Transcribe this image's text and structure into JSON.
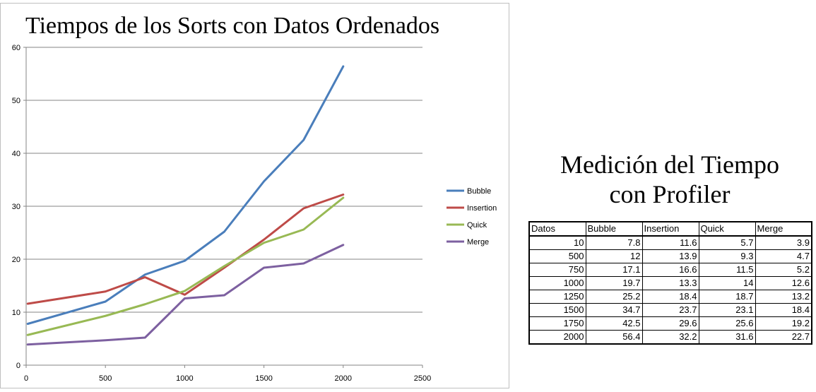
{
  "chart_data": {
    "type": "line",
    "title": "Tiempos de los Sorts con Datos Ordenados",
    "xlabel": "",
    "ylabel": "",
    "x": [
      10,
      500,
      750,
      1000,
      1250,
      1500,
      1750,
      2000
    ],
    "xlim": [
      0,
      2500
    ],
    "ylim": [
      0,
      60
    ],
    "xticks": [
      0,
      500,
      1000,
      1500,
      2000,
      2500
    ],
    "yticks": [
      0,
      10,
      20,
      30,
      40,
      50,
      60
    ],
    "grid": "horizontal",
    "legend": "right",
    "series": [
      {
        "name": "Bubble",
        "color": "#4a7ebb",
        "values": [
          7.8,
          12,
          17.1,
          19.7,
          25.2,
          34.7,
          42.5,
          56.4
        ]
      },
      {
        "name": "Insertion",
        "color": "#be4b48",
        "values": [
          11.6,
          13.9,
          16.6,
          13.3,
          18.4,
          23.7,
          29.6,
          32.2
        ]
      },
      {
        "name": "Quick",
        "color": "#98b954",
        "values": [
          5.7,
          9.3,
          11.5,
          14,
          18.7,
          23.1,
          25.6,
          31.6
        ]
      },
      {
        "name": "Merge",
        "color": "#7d60a0",
        "values": [
          3.9,
          4.7,
          5.2,
          12.6,
          13.2,
          18.4,
          19.2,
          22.7
        ]
      }
    ]
  },
  "table": {
    "heading_line1": "Medición del Tiempo",
    "heading_line2": "con Profiler",
    "headers": [
      "Datos",
      "Bubble",
      "Insertion",
      "Quick",
      "Merge"
    ],
    "rows": [
      [
        "10",
        "7.8",
        "11.6",
        "5.7",
        "3.9"
      ],
      [
        "500",
        "12",
        "13.9",
        "9.3",
        "4.7"
      ],
      [
        "750",
        "17.1",
        "16.6",
        "11.5",
        "5.2"
      ],
      [
        "1000",
        "19.7",
        "13.3",
        "14",
        "12.6"
      ],
      [
        "1250",
        "25.2",
        "18.4",
        "18.7",
        "13.2"
      ],
      [
        "1500",
        "34.7",
        "23.7",
        "23.1",
        "18.4"
      ],
      [
        "1750",
        "42.5",
        "29.6",
        "25.6",
        "19.2"
      ],
      [
        "2000",
        "56.4",
        "32.2",
        "31.6",
        "22.7"
      ]
    ]
  }
}
